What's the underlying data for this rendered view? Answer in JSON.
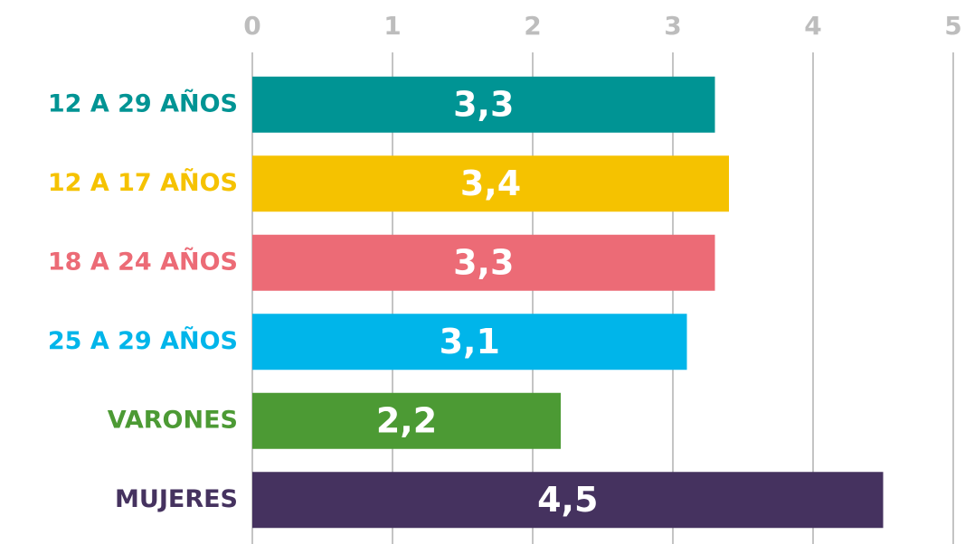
{
  "chart_data": {
    "type": "bar",
    "orientation": "horizontal",
    "categories": [
      "12 A 29 AÑOS",
      "12 A 17 AÑOS",
      "18 A 24 AÑOS",
      "25 A 29 AÑOS",
      "VARONES",
      "MUJERES"
    ],
    "values": [
      3.3,
      3.4,
      3.3,
      3.1,
      2.2,
      4.5
    ],
    "value_labels": [
      "3,3",
      "3,4",
      "3,3",
      "3,1",
      "2,2",
      "4,5"
    ],
    "colors": [
      "#009494",
      "#f5c200",
      "#ec6b76",
      "#00b5ea",
      "#4c9a34",
      "#45325f"
    ],
    "xlim": [
      0,
      5
    ],
    "xticks": [
      0,
      1,
      2,
      3,
      4,
      5
    ],
    "grid": true
  }
}
